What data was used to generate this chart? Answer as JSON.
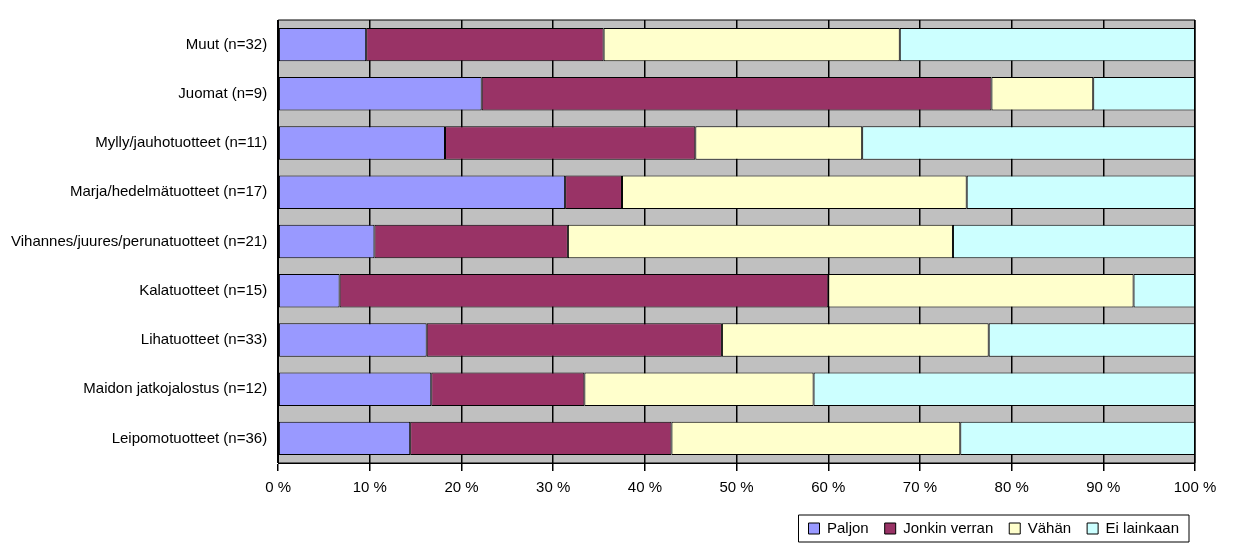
{
  "chart_data": {
    "type": "bar",
    "orientation": "horizontal",
    "stacked": true,
    "categories": [
      "Muut (n=32)",
      "Juomat (n=9)",
      "Mylly/jauhotuotteet (n=11)",
      "Marja/hedelmätuotteet (n=17)",
      "Vihannes/juures/perunatuotteet (n=21)",
      "Kalatuotteet (n=15)",
      "Lihatuotteet (n=33)",
      "Maidon jatkojalostus (n=12)",
      "Leipomotuotteet (n=36)"
    ],
    "series": [
      {
        "name": "Paljon",
        "color": "#9999ff",
        "values": [
          9.6,
          22.2,
          18.2,
          31.3,
          10.5,
          6.7,
          16.2,
          16.7,
          14.4
        ]
      },
      {
        "name": "Jonkin verran",
        "color": "#993366",
        "values": [
          25.9,
          55.6,
          27.3,
          6.2,
          21.1,
          53.3,
          32.2,
          16.7,
          28.5
        ]
      },
      {
        "name": "Vähän",
        "color": "#ffffcc",
        "values": [
          32.3,
          11.1,
          18.2,
          37.6,
          42.0,
          33.3,
          29.1,
          25.0,
          31.5
        ]
      },
      {
        "name": "Ei lainkaan",
        "color": "#ccffff",
        "values": [
          32.2,
          11.1,
          36.3,
          24.9,
          26.4,
          6.7,
          22.5,
          41.6,
          25.6
        ]
      }
    ],
    "xlim": [
      0,
      100
    ],
    "xticks": [
      {
        "value": 0,
        "label": "0 %"
      },
      {
        "value": 10,
        "label": "10 %"
      },
      {
        "value": 20,
        "label": "20 %"
      },
      {
        "value": 30,
        "label": "30 %"
      },
      {
        "value": 40,
        "label": "40 %"
      },
      {
        "value": 50,
        "label": "50 %"
      },
      {
        "value": 60,
        "label": "60 %"
      },
      {
        "value": 70,
        "label": "70 %"
      },
      {
        "value": 80,
        "label": "80 %"
      },
      {
        "value": 90,
        "label": "90 %"
      },
      {
        "value": 100,
        "label": "100 %"
      }
    ],
    "grid": "x",
    "legend": "bottom right"
  }
}
